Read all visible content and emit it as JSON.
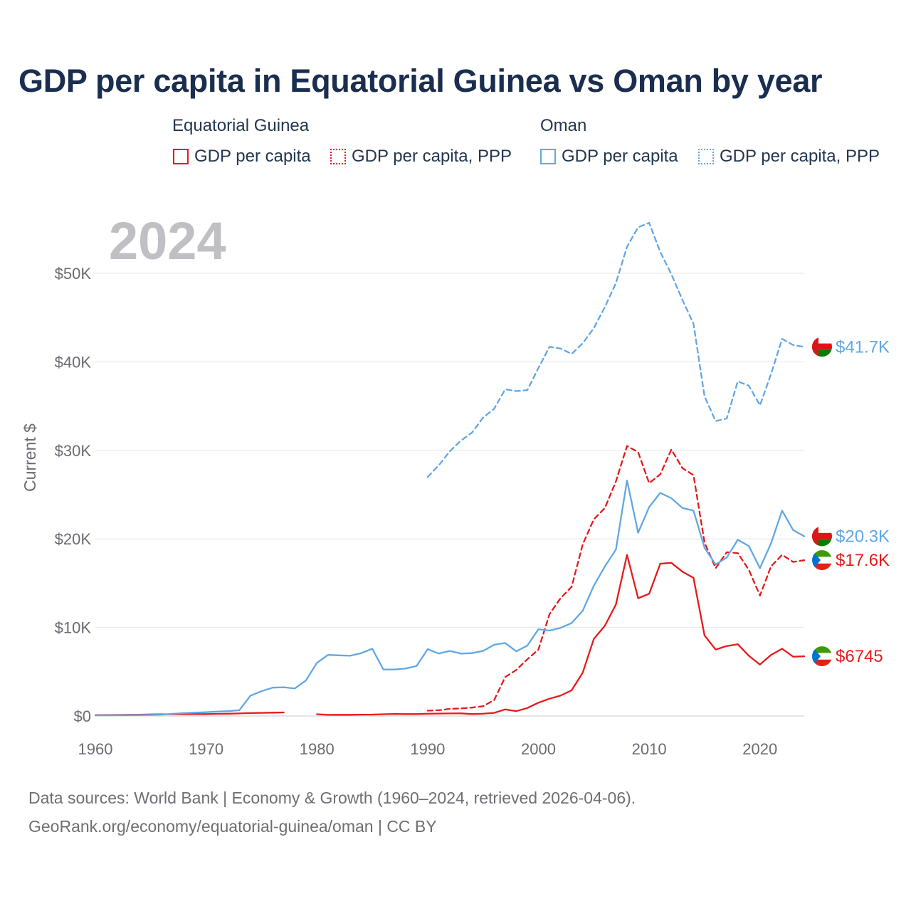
{
  "title": "GDP per capita in Equatorial Guinea vs Oman by year",
  "legend": {
    "groups": [
      {
        "country": "Equatorial Guinea",
        "color": "#e8191b",
        "items": [
          "GDP per capita",
          "GDP per capita, PPP"
        ]
      },
      {
        "country": "Oman",
        "color": "#62a7e4",
        "items": [
          "GDP per capita",
          "GDP per capita, PPP"
        ]
      }
    ]
  },
  "year_label": "2024",
  "source": {
    "line1": "Data sources: World Bank | Economy & Growth (1960–2024, retrieved 2026-04-06).",
    "line2": "GeoRank.org/economy/equatorial-guinea/oman | CC BY"
  },
  "chart_data": {
    "type": "line",
    "title": "GDP per capita in Equatorial Guinea vs Oman by year",
    "xlabel": "",
    "ylabel": "Current $",
    "xlim": [
      1960,
      2024
    ],
    "ylim": [
      0,
      55000
    ],
    "x_ticks": [
      1960,
      1970,
      1980,
      1990,
      2000,
      2010,
      2020
    ],
    "x_tick_labels": [
      "1960",
      "1970",
      "1980",
      "1990",
      "2000",
      "2010",
      "2020"
    ],
    "y_ticks": [
      0,
      10000,
      20000,
      30000,
      40000,
      50000
    ],
    "y_tick_labels": [
      "$0",
      "$10K",
      "$20K",
      "$30K",
      "$40K",
      "$50K"
    ],
    "grid": true,
    "series": [
      {
        "name": "Equatorial Guinea — GDP per capita",
        "color": "#e8191b",
        "dashed": false,
        "end_label": "$6745",
        "x": [
          1960,
          1961,
          1962,
          1963,
          1964,
          1965,
          1966,
          1967,
          1968,
          1969,
          1970,
          1971,
          1972,
          1973,
          1974,
          1975,
          1976,
          1977,
          1978,
          1979,
          1980,
          1981,
          1982,
          1983,
          1984,
          1985,
          1986,
          1987,
          1988,
          1989,
          1990,
          1991,
          1992,
          1993,
          1994,
          1995,
          1996,
          1997,
          1998,
          1999,
          2000,
          2001,
          2002,
          2003,
          2004,
          2005,
          2006,
          2007,
          2008,
          2009,
          2010,
          2011,
          2012,
          2013,
          2014,
          2015,
          2016,
          2017,
          2018,
          2019,
          2020,
          2021,
          2022,
          2023,
          2024
        ],
        "values": [
          100,
          110,
          120,
          140,
          150,
          180,
          190,
          200,
          210,
          220,
          220,
          240,
          260,
          290,
          330,
          350,
          380,
          400,
          null,
          null,
          200,
          130,
          140,
          140,
          150,
          160,
          200,
          230,
          220,
          220,
          260,
          270,
          290,
          300,
          220,
          260,
          350,
          750,
          550,
          900,
          1500,
          1950,
          2300,
          2900,
          4900,
          8700,
          10200,
          12600,
          18200,
          13300,
          13800,
          17200,
          17300,
          16300,
          15600,
          9100,
          7500,
          7900,
          8100,
          6800,
          5800,
          6900,
          7600,
          6700,
          6745
        ]
      },
      {
        "name": "Equatorial Guinea — GDP per capita, PPP",
        "color": "#e8191b",
        "dashed": true,
        "end_label": "$17.6K",
        "x": [
          1990,
          1991,
          1992,
          1993,
          1994,
          1995,
          1996,
          1997,
          1998,
          1999,
          2000,
          2001,
          2002,
          2003,
          2004,
          2005,
          2006,
          2007,
          2008,
          2009,
          2010,
          2011,
          2012,
          2013,
          2014,
          2015,
          2016,
          2017,
          2018,
          2019,
          2020,
          2021,
          2022,
          2023,
          2024
        ],
        "values": [
          600,
          650,
          800,
          850,
          950,
          1100,
          1800,
          4400,
          5200,
          6400,
          7500,
          11500,
          13300,
          14600,
          19400,
          22200,
          23500,
          26500,
          30500,
          29800,
          26300,
          27300,
          30100,
          28000,
          27200,
          19600,
          16700,
          18500,
          18400,
          16500,
          13600,
          16900,
          18200,
          17400,
          17600
        ]
      },
      {
        "name": "Oman — GDP per capita",
        "color": "#62a7e4",
        "dashed": false,
        "end_label": "$20.3K",
        "x": [
          1960,
          1961,
          1962,
          1963,
          1964,
          1965,
          1966,
          1967,
          1968,
          1969,
          1970,
          1971,
          1972,
          1973,
          1974,
          1975,
          1976,
          1977,
          1978,
          1979,
          1980,
          1981,
          1982,
          1983,
          1984,
          1985,
          1986,
          1987,
          1988,
          1989,
          1990,
          1991,
          1992,
          1993,
          1994,
          1995,
          1996,
          1997,
          1998,
          1999,
          2000,
          2001,
          2002,
          2003,
          2004,
          2005,
          2006,
          2007,
          2008,
          2009,
          2010,
          2011,
          2012,
          2013,
          2014,
          2015,
          2016,
          2017,
          2018,
          2019,
          2020,
          2021,
          2022,
          2023,
          2024
        ],
        "values": [
          70,
          80,
          90,
          100,
          110,
          130,
          150,
          250,
          330,
          380,
          430,
          500,
          550,
          650,
          2300,
          2800,
          3200,
          3250,
          3100,
          4000,
          6000,
          6900,
          6850,
          6800,
          7100,
          7600,
          5250,
          5250,
          5350,
          5650,
          7550,
          7050,
          7350,
          7050,
          7100,
          7350,
          8050,
          8250,
          7300,
          7950,
          9800,
          9650,
          9950,
          10500,
          11900,
          14700,
          16900,
          18800,
          26600,
          20700,
          23600,
          25200,
          24600,
          23500,
          23200,
          19000,
          17100,
          17900,
          19900,
          19200,
          16700,
          19500,
          23200,
          21000,
          20300
        ]
      },
      {
        "name": "Oman — GDP per capita, PPP",
        "color": "#62a7e4",
        "dashed": true,
        "end_label": "$41.7K",
        "x": [
          1990,
          1991,
          1992,
          1993,
          1994,
          1995,
          1996,
          1997,
          1998,
          1999,
          2000,
          2001,
          2002,
          2003,
          2004,
          2005,
          2006,
          2007,
          2008,
          2009,
          2010,
          2011,
          2012,
          2013,
          2014,
          2015,
          2016,
          2017,
          2018,
          2019,
          2020,
          2021,
          2022,
          2023,
          2024
        ],
        "values": [
          27000,
          28300,
          29900,
          31100,
          32000,
          33700,
          34700,
          36900,
          36700,
          36800,
          39300,
          41700,
          41500,
          40900,
          42100,
          43800,
          46200,
          48900,
          53000,
          55200,
          55700,
          52400,
          49900,
          47000,
          44300,
          36100,
          33300,
          33600,
          37800,
          37300,
          35100,
          38600,
          42600,
          41900,
          41700
        ]
      }
    ]
  }
}
